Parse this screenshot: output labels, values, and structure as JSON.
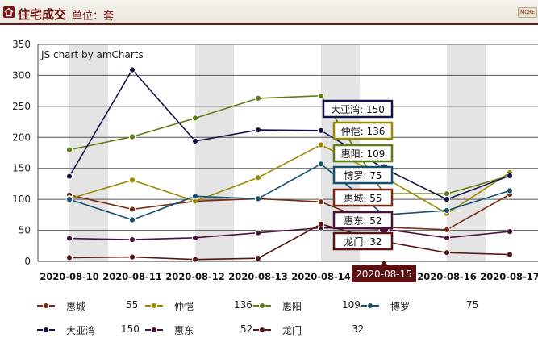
{
  "header": {
    "title": "住宅成交",
    "unit_label": "单位：套",
    "more_label": "MORE"
  },
  "chart_data": {
    "type": "line",
    "watermark": "JS chart by amCharts",
    "categories": [
      "2020-08-10",
      "2020-08-11",
      "2020-08-12",
      "2020-08-13",
      "2020-08-14",
      "2020-08-15",
      "2020-08-16",
      "2020-08-17"
    ],
    "ylim": [
      0,
      350
    ],
    "yticks": [
      0,
      50,
      100,
      150,
      200,
      250,
      300,
      350
    ],
    "grid": true,
    "legend_position": "bottom",
    "cursor_category": "2020-08-15",
    "series": [
      {
        "name": "惠城",
        "color": "#7a2a14",
        "values": [
          107,
          84,
          97,
          101,
          96,
          55,
          51,
          108
        ]
      },
      {
        "name": "仲恺",
        "color": "#9a8a00",
        "values": [
          101,
          131,
          97,
          135,
          188,
          136,
          77,
          143
        ]
      },
      {
        "name": "惠阳",
        "color": "#5e7e14",
        "values": [
          180,
          201,
          231,
          263,
          267,
          109,
          109,
          138
        ]
      },
      {
        "name": "博罗",
        "color": "#14506e",
        "values": [
          100,
          67,
          105,
          101,
          157,
          75,
          82,
          114
        ]
      },
      {
        "name": "大亚湾",
        "color": "#14144a",
        "values": [
          137,
          309,
          194,
          212,
          211,
          150,
          100,
          138
        ]
      },
      {
        "name": "惠东",
        "color": "#4a143a",
        "values": [
          37,
          35,
          38,
          46,
          54,
          52,
          38,
          48
        ]
      },
      {
        "name": "龙门",
        "color": "#5a1414",
        "values": [
          6,
          7,
          3,
          5,
          60,
          32,
          14,
          11
        ]
      }
    ],
    "cursor_values": {
      "惠城": 55,
      "仲恺": 136,
      "惠阳": 109,
      "博罗": 75,
      "大亚湾": 150,
      "惠东": 52,
      "龙门": 32
    }
  }
}
